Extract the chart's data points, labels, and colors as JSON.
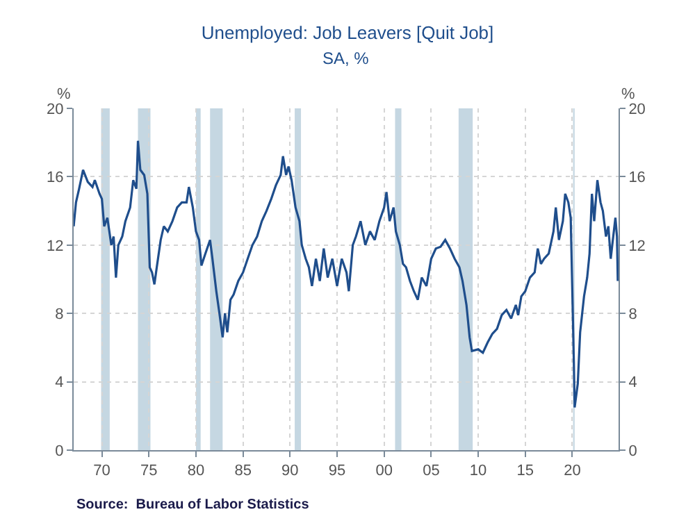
{
  "chart_data": {
    "type": "line",
    "title": "Unemployed: Job Leavers [Quit Job]",
    "subtitle": "SA, %",
    "ylabel": "%",
    "y2label": "%",
    "annotations": [
      "Source:  Bureau of Labor Statistics"
    ],
    "x": [
      "1967-01",
      "1967-04",
      "1967-08",
      "1968-01",
      "1968-07",
      "1969-01",
      "1969-04",
      "1969-10",
      "1970-01",
      "1970-04",
      "1970-08",
      "1971-01",
      "1971-04",
      "1971-07",
      "1971-10",
      "1972-03",
      "1972-07",
      "1973-01",
      "1973-05",
      "1973-09",
      "1973-11",
      "1974-02",
      "1974-07",
      "1974-11",
      "1975-02",
      "1975-05",
      "1975-08",
      "1975-11",
      "1976-04",
      "1976-08",
      "1977-01",
      "1977-07",
      "1978-01",
      "1978-07",
      "1979-01",
      "1979-04",
      "1979-09",
      "1980-01",
      "1980-05",
      "1980-08",
      "1981-01",
      "1981-07",
      "1981-10",
      "1982-03",
      "1982-07",
      "1982-11",
      "1983-02",
      "1983-05",
      "1983-09",
      "1984-01",
      "1984-07",
      "1985-01",
      "1985-07",
      "1986-01",
      "1986-07",
      "1987-01",
      "1987-07",
      "1988-01",
      "1988-07",
      "1989-01",
      "1989-04",
      "1989-08",
      "1989-11",
      "1990-03",
      "1990-08",
      "1991-01",
      "1991-04",
      "1991-09",
      "1992-01",
      "1992-05",
      "1992-10",
      "1993-03",
      "1993-08",
      "1994-01",
      "1994-07",
      "1995-01",
      "1995-07",
      "1996-01",
      "1996-04",
      "1996-09",
      "1997-01",
      "1997-07",
      "1998-01",
      "1998-07",
      "1999-01",
      "1999-07",
      "2000-01",
      "2000-04",
      "2000-08",
      "2001-01",
      "2001-04",
      "2001-09",
      "2002-01",
      "2002-05",
      "2002-10",
      "2003-03",
      "2003-08",
      "2004-01",
      "2004-07",
      "2005-01",
      "2005-07",
      "2006-01",
      "2006-07",
      "2007-01",
      "2007-07",
      "2008-01",
      "2008-05",
      "2008-10",
      "2009-02",
      "2009-05",
      "2010-01",
      "2010-07",
      "2011-01",
      "2011-07",
      "2012-01",
      "2012-07",
      "2013-01",
      "2013-07",
      "2014-01",
      "2014-04",
      "2014-08",
      "2015-01",
      "2015-07",
      "2016-01",
      "2016-05",
      "2016-09",
      "2017-01",
      "2017-07",
      "2018-01",
      "2018-04",
      "2018-08",
      "2019-01",
      "2019-04",
      "2019-08",
      "2019-11",
      "2020-03",
      "2020-04",
      "2020-08",
      "2020-11",
      "2021-04",
      "2021-08",
      "2021-11",
      "2022-02",
      "2022-05",
      "2022-09",
      "2023-01",
      "2023-04",
      "2023-08",
      "2023-11",
      "2024-02",
      "2024-04",
      "2024-08",
      "2024-10",
      "2024-11"
    ],
    "series": [
      {
        "color": "#1f4e8c",
        "values": [
          13.1,
          14.5,
          15.3,
          16.4,
          15.7,
          15.4,
          15.8,
          15.0,
          14.7,
          13.1,
          13.6,
          12.0,
          12.5,
          10.1,
          12.0,
          12.5,
          13.4,
          14.2,
          15.8,
          15.3,
          18.1,
          16.4,
          16.1,
          15.0,
          10.7,
          10.4,
          9.7,
          10.7,
          12.3,
          13.1,
          12.8,
          13.4,
          14.2,
          14.5,
          14.5,
          15.4,
          14.2,
          12.8,
          12.3,
          10.8,
          11.5,
          12.3,
          11.2,
          9.3,
          8.0,
          6.6,
          8.0,
          6.9,
          8.8,
          9.1,
          9.9,
          10.4,
          11.2,
          12.0,
          12.5,
          13.4,
          14.0,
          14.7,
          15.5,
          16.1,
          17.2,
          16.1,
          16.6,
          15.8,
          14.2,
          13.4,
          12.0,
          11.2,
          10.7,
          9.6,
          11.2,
          9.9,
          11.8,
          10.1,
          11.2,
          9.6,
          11.2,
          10.4,
          9.3,
          12.0,
          12.5,
          13.4,
          12.0,
          12.8,
          12.3,
          13.4,
          14.2,
          15.1,
          13.4,
          14.2,
          12.8,
          12.0,
          10.9,
          10.7,
          9.9,
          9.3,
          8.8,
          10.1,
          9.6,
          11.2,
          11.8,
          11.9,
          12.3,
          11.8,
          11.2,
          10.7,
          9.9,
          8.5,
          6.6,
          5.8,
          5.9,
          5.7,
          6.3,
          6.8,
          7.1,
          7.9,
          8.2,
          7.7,
          8.5,
          7.9,
          9.0,
          9.3,
          10.1,
          10.4,
          11.8,
          10.9,
          11.2,
          11.5,
          12.8,
          14.2,
          12.3,
          13.4,
          15.0,
          14.5,
          13.6,
          5.2,
          2.5,
          3.9,
          6.9,
          9.0,
          10.1,
          11.5,
          15.0,
          13.4,
          15.8,
          14.5,
          14.0,
          12.5,
          13.1,
          11.2,
          12.0,
          13.6,
          12.5,
          9.9
        ]
      }
    ],
    "xlim": [
      "1967-01",
      "2024-12"
    ],
    "xticks": [
      {
        "value": "1970-01-01",
        "label": "70"
      },
      {
        "value": "1975-01-01",
        "label": "75"
      },
      {
        "value": "1980-01-01",
        "label": "80"
      },
      {
        "value": "1985-01-01",
        "label": "85"
      },
      {
        "value": "1990-01-01",
        "label": "90"
      },
      {
        "value": "1995-01-01",
        "label": "95"
      },
      {
        "value": "2000-01-01",
        "label": "00"
      },
      {
        "value": "2005-01-01",
        "label": "05"
      },
      {
        "value": "2010-01-01",
        "label": "10"
      },
      {
        "value": "2015-01-01",
        "label": "15"
      },
      {
        "value": "2020-01-01",
        "label": "20"
      }
    ],
    "ylim": [
      0,
      20
    ],
    "yticks": [
      0,
      4,
      8,
      12,
      16,
      20
    ],
    "y2lim": [
      0,
      20
    ],
    "y2ticks": [
      0,
      4,
      8,
      12,
      16,
      20
    ],
    "grid": true,
    "line_style": "solid",
    "marker": "none",
    "bands": [
      {
        "axis": "x",
        "from": "1969-12",
        "to": "1970-11",
        "color": "#c5d7e2"
      },
      {
        "axis": "x",
        "from": "1973-11",
        "to": "1975-03",
        "color": "#c5d7e2"
      },
      {
        "axis": "x",
        "from": "1980-01",
        "to": "1980-07",
        "color": "#c5d7e2"
      },
      {
        "axis": "x",
        "from": "1981-07",
        "to": "1982-11",
        "color": "#c5d7e2"
      },
      {
        "axis": "x",
        "from": "1990-07",
        "to": "1991-03",
        "color": "#c5d7e2"
      },
      {
        "axis": "x",
        "from": "2001-03",
        "to": "2001-11",
        "color": "#c5d7e2"
      },
      {
        "axis": "x",
        "from": "2007-12",
        "to": "2009-06",
        "color": "#c5d7e2"
      },
      {
        "axis": "x",
        "from": "2020-02",
        "to": "2020-04",
        "color": "#c5d7e2"
      }
    ]
  }
}
